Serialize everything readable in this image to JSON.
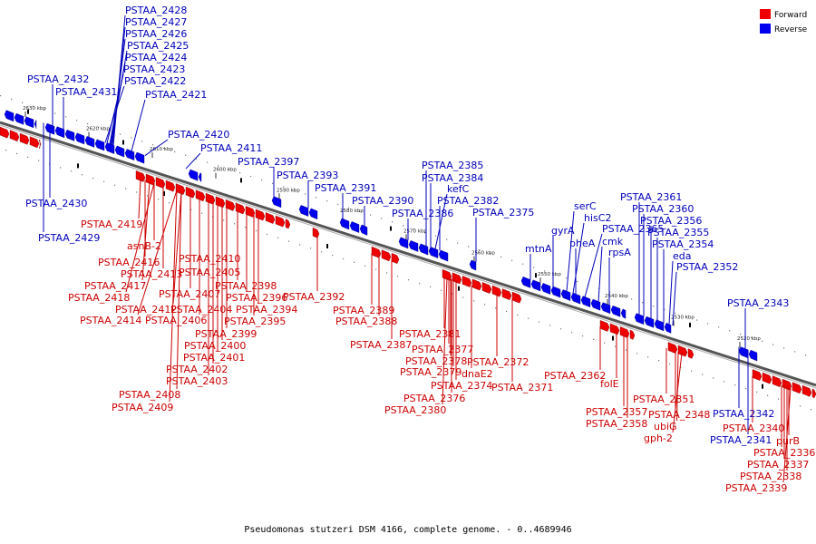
{
  "caption": "Pseudomonas stutzeri DSM 4166, complete genome. - 0..4689946",
  "legend": [
    {
      "label": "Forward",
      "color": "#ee0000"
    },
    {
      "label": "Reverse",
      "color": "#0000ee"
    }
  ],
  "ticks": [
    "2630 kbp",
    "2620 kbp",
    "2610 kbp",
    "2600 kbp",
    "2590 kbp",
    "2580 kbp",
    "2570 kbp",
    "2560 kbp",
    "2550 kbp",
    "2540 kbp",
    "2530 kbp",
    "2520 kbp"
  ],
  "reverse_labels": [
    "PSTAA_2428",
    "PSTAA_2427",
    "PSTAA_2426",
    "PSTAA_2425",
    "PSTAA_2424",
    "PSTAA_2423",
    "PSTAA_2422",
    "PSTAA_2432",
    "PSTAA_2431",
    "PSTAA_2421",
    "PSTAA_2420",
    "PSTAA_2411",
    "PSTAA_2397",
    "PSTAA_2393",
    "PSTAA_2430",
    "PSTAA_2429",
    "PSTAA_2391",
    "PSTAA_2390",
    "PSTAA_2385",
    "PSTAA_2384",
    "kefC",
    "PSTAA_2382",
    "PSTAA_2386",
    "PSTAA_2375",
    "mtnA",
    "gyrA",
    "serC",
    "hisC2",
    "pheA",
    "PSTAA_2365",
    "cmk",
    "rpsA",
    "PSTAA_2361",
    "PSTAA_2360",
    "PSTAA_2356",
    "PSTAA_2355",
    "PSTAA_2354",
    "eda",
    "PSTAA_2352",
    "PSTAA_2343",
    "PSTAA_2342",
    "PSTAA_2341"
  ],
  "forward_labels": [
    "PSTAA_2419",
    "asnB-2",
    "PSTAA_2416",
    "PSTAA_2413",
    "PSTAA_2417",
    "PSTAA_2418",
    "PSTAA_2412",
    "PSTAA_2414",
    "PSTAA_2410",
    "PSTAA_2405",
    "PSTAA_2407",
    "PSTAA_2404",
    "PSTAA_2406",
    "PSTAA_2398",
    "PSTAA_2396",
    "PSTAA_2394",
    "PSTAA_2395",
    "PSTAA_2399",
    "PSTAA_2400",
    "PSTAA_2401",
    "PSTAA_2402",
    "PSTAA_2403",
    "PSTAA_2408",
    "PSTAA_2409",
    "PSTAA_2392",
    "PSTAA_2389",
    "PSTAA_2388",
    "PSTAA_2387",
    "PSTAA_2381",
    "PSTAA_2377",
    "PSTAA_2378",
    "PSTAA_2379",
    "PSTAA_2374",
    "PSTAA_2376",
    "PSTAA_2380",
    "dnaE2",
    "PSTAA_2372",
    "PSTAA_2371",
    "PSTAA_2362",
    "folE",
    "PSTAA_2357",
    "PSTAA_2358",
    "PSTAA_2351",
    "PSTAA_2348",
    "ubiG",
    "gph-2",
    "PSTAA_2340",
    "purB",
    "PSTAA_2336",
    "PSTAA_2337",
    "PSTAA_2338",
    "PSTAA_2339"
  ]
}
